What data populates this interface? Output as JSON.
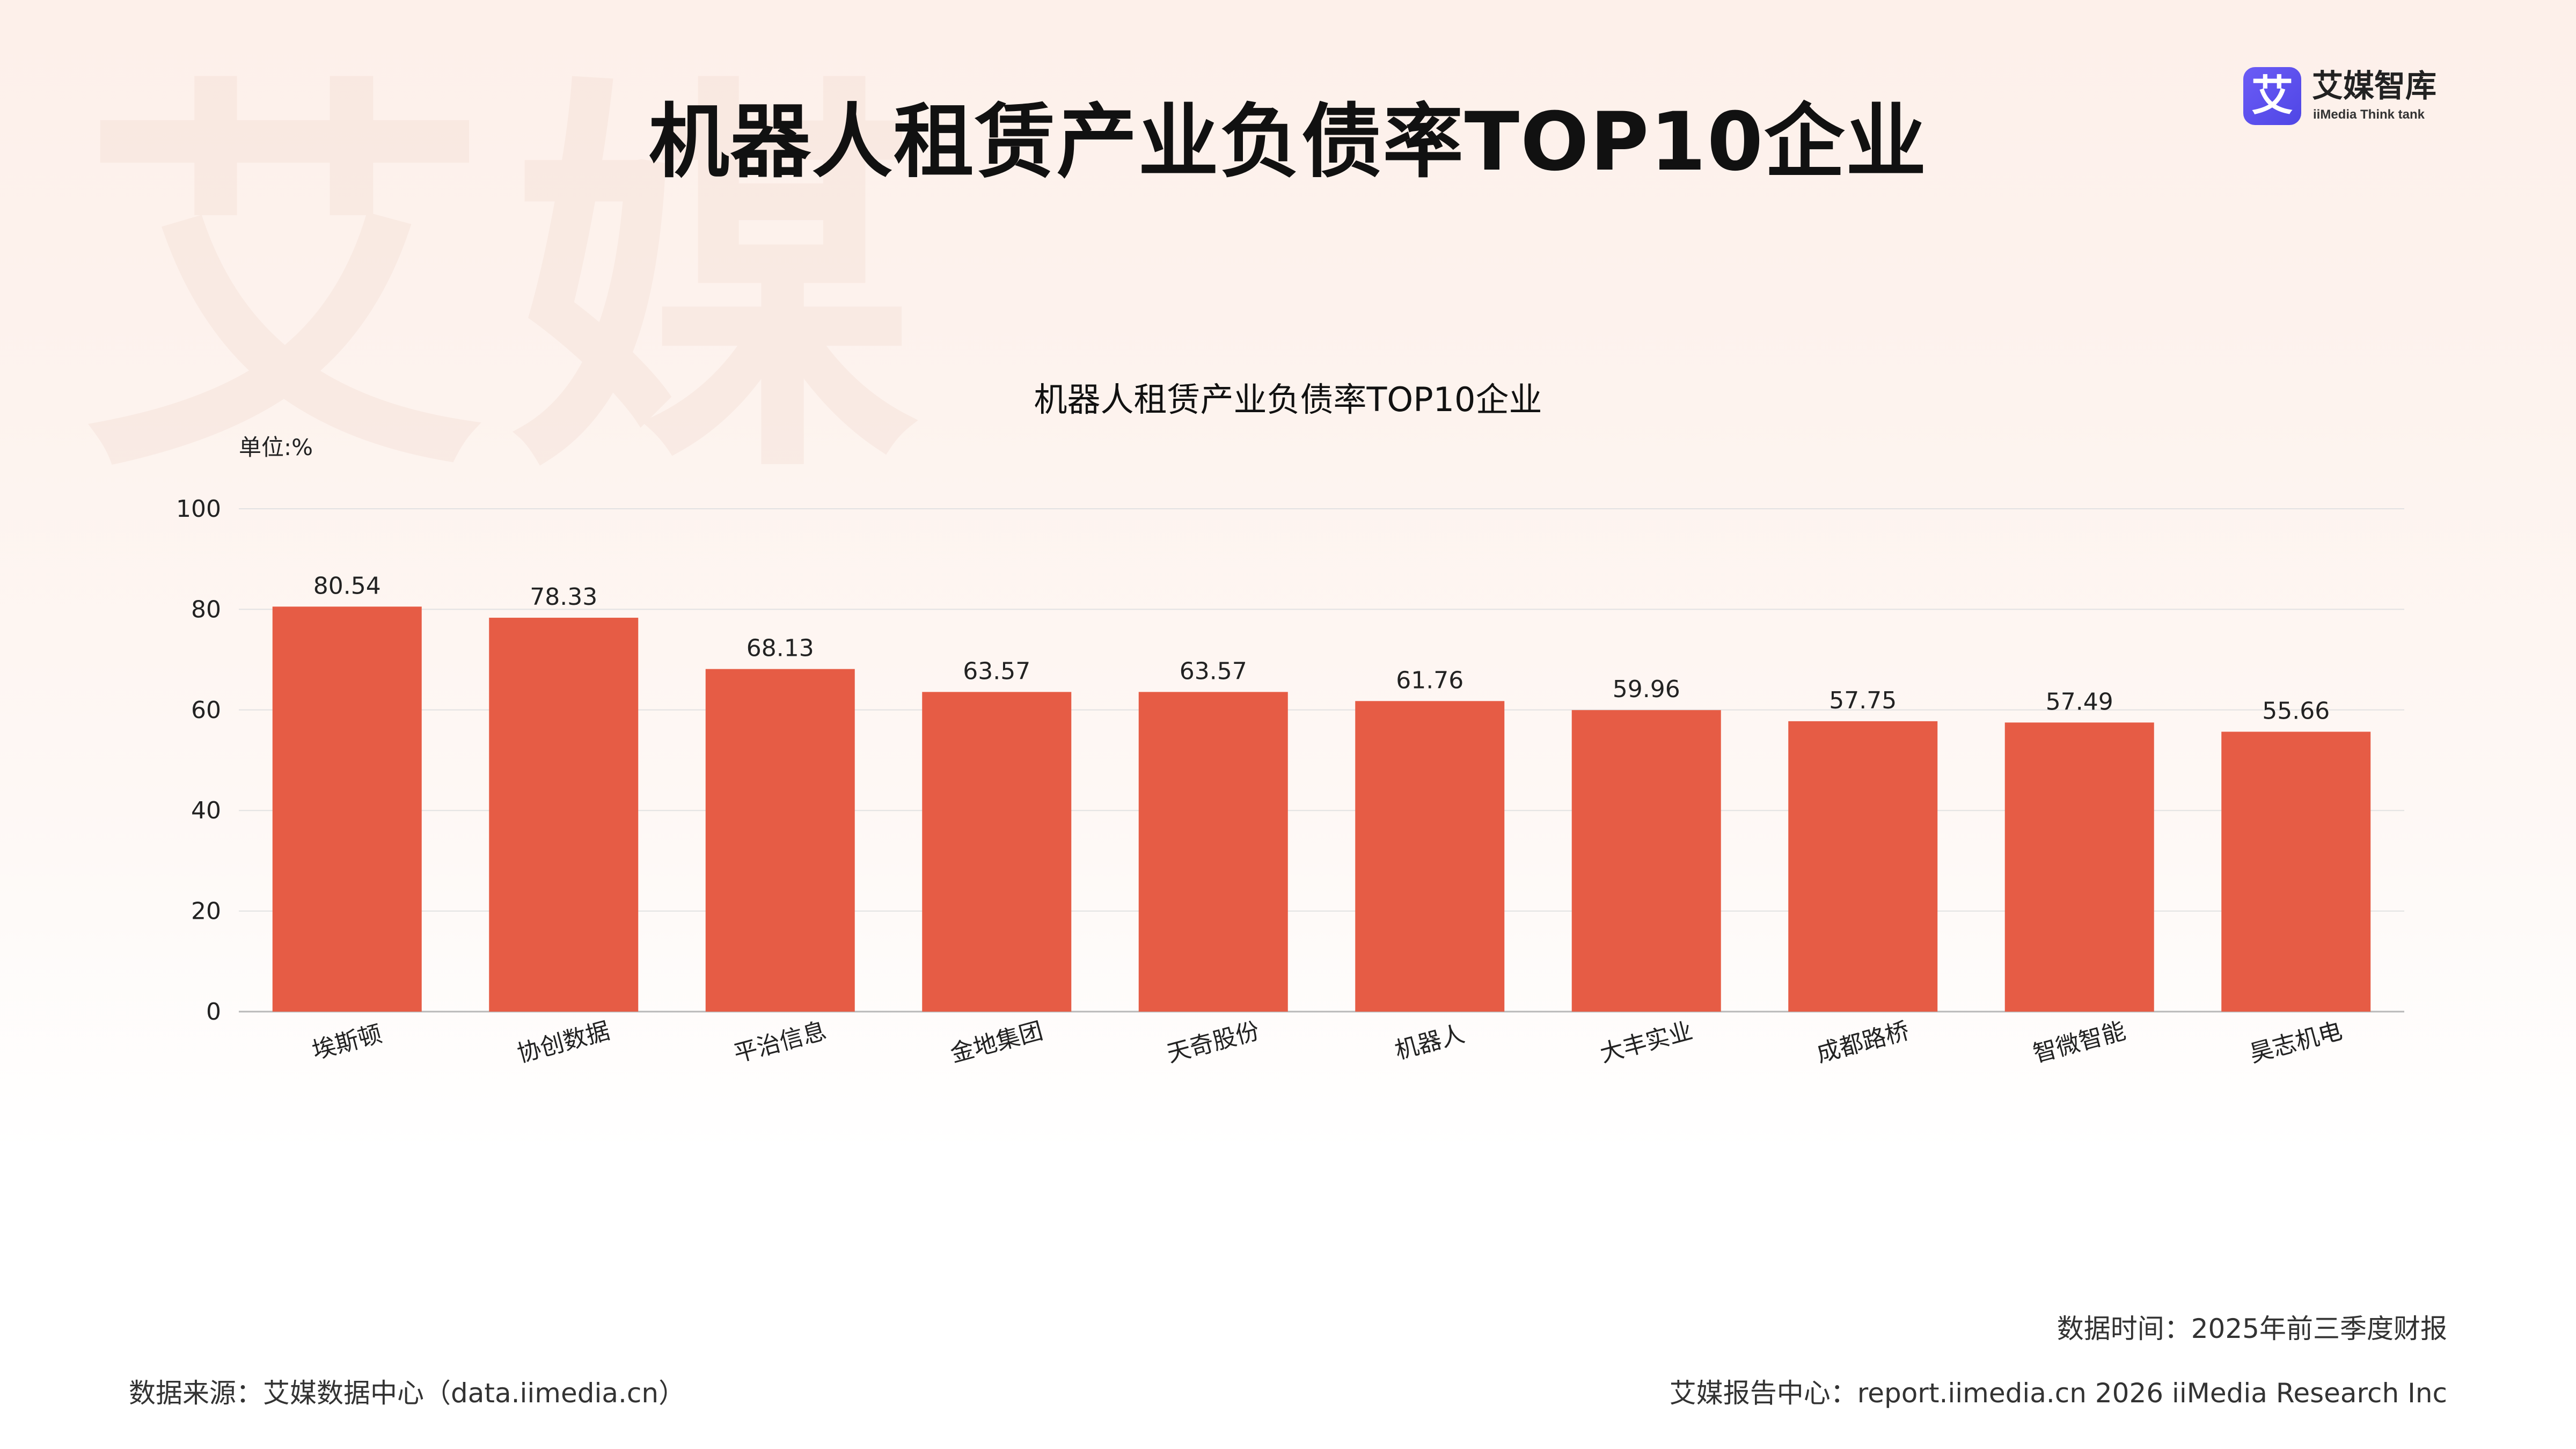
{
  "title": "机器人租赁产业负债率TOP10企业",
  "watermark": "艾媒",
  "logo": {
    "mark_glyph": "艾",
    "name_cn": "艾媒智库",
    "name_en": "iiMedia Think tank",
    "colors": {
      "mark_start": "#6b5cf6",
      "mark_end": "#4f46e5"
    }
  },
  "chart_data": {
    "type": "bar",
    "title": "机器人租赁产业负债率TOP10企业",
    "unit_label": "单位:%",
    "categories": [
      "埃斯顿",
      "协创数据",
      "平治信息",
      "金地集团",
      "天奇股份",
      "机器人",
      "大丰实业",
      "成都路桥",
      "智微智能",
      "昊志机电"
    ],
    "series": [
      {
        "values": [
          80.54,
          78.33,
          68.13,
          63.57,
          63.57,
          61.76,
          59.96,
          57.75,
          57.49,
          55.66
        ]
      }
    ],
    "value_labels": [
      "80.54",
      "78.33",
      "68.13",
      "63.57",
      "63.57",
      "61.76",
      "59.96",
      "57.75",
      "57.49",
      "55.66"
    ],
    "ylim": [
      0,
      100
    ],
    "yticks": [
      0,
      20,
      40,
      60,
      80,
      100
    ],
    "xlabel": "",
    "ylabel": "",
    "grid": true,
    "legend": "none",
    "bar_color": "#e65c45"
  },
  "footer": {
    "source": "数据来源：艾媒数据中心（data.iimedia.cn）",
    "time": "数据时间：2025年前三季度财报",
    "report": "艾媒报告中心：report.iimedia.cn   2026 iiMedia Research Inc"
  }
}
